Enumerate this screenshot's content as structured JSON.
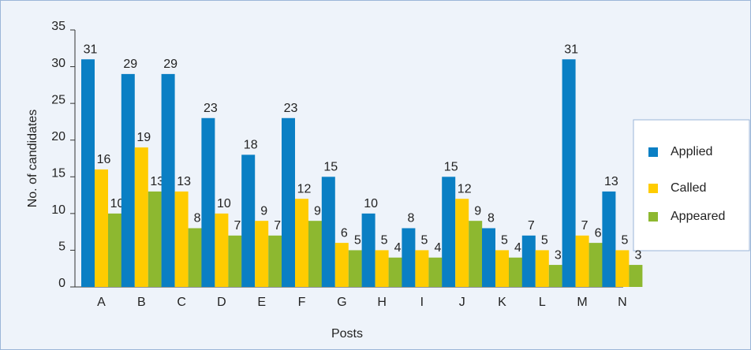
{
  "chart_data": {
    "type": "bar",
    "x_label": "Posts",
    "y_label": "No. of candidates",
    "categories": [
      "A",
      "B",
      "C",
      "D",
      "E",
      "F",
      "G",
      "H",
      "I",
      "J",
      "K",
      "L",
      "M",
      "N"
    ],
    "series": [
      {
        "name": "Applied",
        "color": "#0a7fc4",
        "values": [
          31,
          29,
          29,
          23,
          18,
          23,
          15,
          10,
          8,
          15,
          8,
          7,
          31,
          13
        ]
      },
      {
        "name": "Called",
        "color": "#ffcc00",
        "values": [
          16,
          19,
          13,
          10,
          9,
          12,
          6,
          5,
          5,
          12,
          5,
          5,
          7,
          5
        ]
      },
      {
        "name": "Appeared",
        "color": "#8db830",
        "values": [
          10,
          13,
          8,
          7,
          7,
          9,
          5,
          4,
          4,
          9,
          4,
          3,
          6,
          3
        ]
      }
    ],
    "ylim": [
      0,
      35
    ],
    "yticks": [
      0,
      5,
      10,
      15,
      20,
      25,
      30,
      35
    ],
    "legend": "right"
  }
}
